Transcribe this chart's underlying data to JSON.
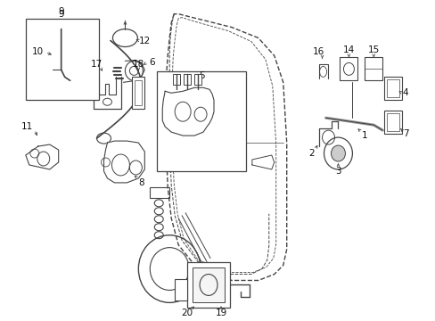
{
  "bg_color": "#ffffff",
  "fig_width": 4.89,
  "fig_height": 3.6,
  "dpi": 100,
  "line_color": "#444444",
  "label_color": "#111111",
  "label_fs": 7.5
}
